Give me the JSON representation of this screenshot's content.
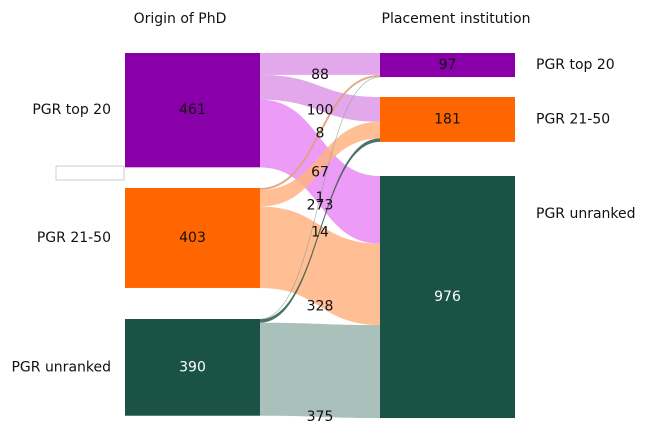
{
  "chart_data": {
    "type": "sankey",
    "columns": [
      "Origin of PhD",
      "Placement institution"
    ],
    "nodes": [
      {
        "name": "PGR top 20",
        "value": 461,
        "color": "#8a00a8",
        "column": 0
      },
      {
        "name": "PGR 21-50",
        "value": 403,
        "color": "#ff6600",
        "column": 0
      },
      {
        "name": "PGR unranked",
        "value": 390,
        "color": "#1b5247",
        "column": 0
      },
      {
        "name": "PGR top 20",
        "value": 97,
        "color": "#8a00a8",
        "column": 1
      },
      {
        "name": "PGR 21-50",
        "value": 181,
        "color": "#ff6600",
        "column": 1
      },
      {
        "name": "PGR unranked",
        "value": 976,
        "color": "#1b5247",
        "column": 1
      }
    ],
    "links": [
      {
        "source": 0,
        "target": 3,
        "value": 88,
        "color": "#dd99e8"
      },
      {
        "source": 0,
        "target": 4,
        "value": 100,
        "color": "#dd99e8"
      },
      {
        "source": 0,
        "target": 5,
        "value": 273,
        "color": "#e98af5"
      },
      {
        "source": 1,
        "target": 3,
        "value": 8,
        "color": "#e0a080"
      },
      {
        "source": 1,
        "target": 4,
        "value": 67,
        "color": "#ffb380"
      },
      {
        "source": 1,
        "target": 5,
        "value": 328,
        "color": "#ffb380"
      },
      {
        "source": 2,
        "target": 3,
        "value": 1,
        "color": "#8aa39c"
      },
      {
        "source": 2,
        "target": 4,
        "value": 14,
        "color": "#2e5a4f"
      },
      {
        "source": 2,
        "target": 5,
        "value": 375,
        "color": "#9bb5ae"
      }
    ]
  }
}
